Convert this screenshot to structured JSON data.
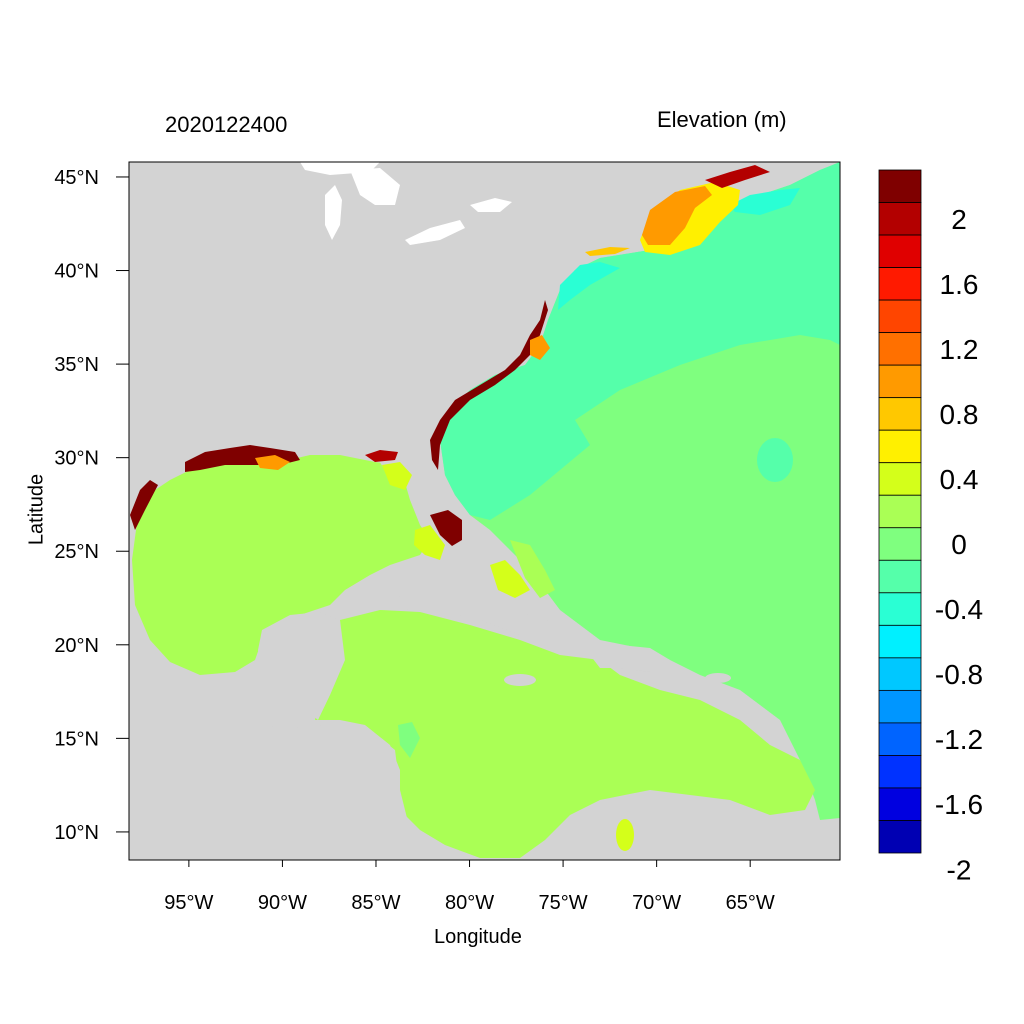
{
  "header": {
    "timestamp": "2020122400",
    "variable_title": "Elevation (m)"
  },
  "axes": {
    "x_label": "Longitude",
    "y_label": "Latitude",
    "x_ticks": [
      {
        "value": -95,
        "label": "95°W"
      },
      {
        "value": -90,
        "label": "90°W"
      },
      {
        "value": -85,
        "label": "85°W"
      },
      {
        "value": -80,
        "label": "80°W"
      },
      {
        "value": -75,
        "label": "75°W"
      },
      {
        "value": -70,
        "label": "70°W"
      },
      {
        "value": -65,
        "label": "65°W"
      }
    ],
    "y_ticks": [
      {
        "value": 45,
        "label": "45°N"
      },
      {
        "value": 40,
        "label": "40°N"
      },
      {
        "value": 35,
        "label": "35°N"
      },
      {
        "value": 30,
        "label": "30°N"
      },
      {
        "value": 25,
        "label": "25°N"
      },
      {
        "value": 20,
        "label": "20°N"
      },
      {
        "value": 15,
        "label": "15°N"
      },
      {
        "value": 10,
        "label": "10°N"
      }
    ],
    "x_range": [
      -98.2,
      -60.2
    ],
    "y_range": [
      8.5,
      45.8
    ]
  },
  "colorbar": {
    "colors": [
      "#7f0000",
      "#b30000",
      "#e00000",
      "#ff1a00",
      "#ff4500",
      "#ff7000",
      "#ff9a00",
      "#ffc800",
      "#fff000",
      "#d4ff1a",
      "#aaff55",
      "#7fff7f",
      "#55ffaa",
      "#2affd4",
      "#00f0ff",
      "#00c8ff",
      "#0096ff",
      "#0064ff",
      "#0032ff",
      "#0000e0",
      "#0000b3"
    ],
    "labels": [
      {
        "label": "2",
        "level": 2.0
      },
      {
        "label": "1.6",
        "level": 1.6
      },
      {
        "label": "1.2",
        "level": 1.2
      },
      {
        "label": "0.8",
        "level": 0.8
      },
      {
        "label": "0.4",
        "level": 0.4
      },
      {
        "label": "0",
        "level": 0
      },
      {
        "label": "-0.4",
        "level": -0.4
      },
      {
        "label": "-0.8",
        "level": -0.8
      },
      {
        "label": "-1.2",
        "level": -1.2
      },
      {
        "label": "-1.6",
        "level": -1.6
      },
      {
        "label": "-2",
        "level": -2.0
      }
    ]
  },
  "colors": {
    "land": "#d3d3d3",
    "water_zero": "#7fff7f",
    "water_gulf": "#aaff55",
    "water_atlantic_shelf": "#55ffaa",
    "lakes": "#ffffff"
  }
}
